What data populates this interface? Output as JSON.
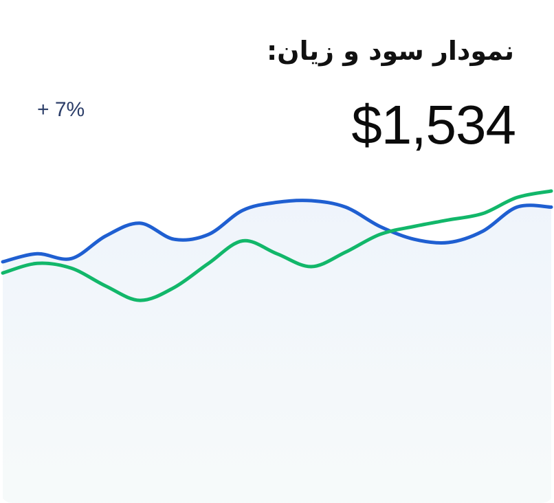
{
  "card": {
    "title": "نمودار سود و زیان:",
    "amount": "$1,534",
    "change": "+ 7%"
  },
  "chart_data": {
    "type": "line",
    "x": [
      0,
      1,
      2,
      3,
      4,
      5,
      6,
      7,
      8,
      9,
      10,
      11,
      12,
      13,
      14,
      15,
      16
    ],
    "series": [
      {
        "color": "#1f5fd1",
        "values": [
          56,
          61,
          58,
          72,
          80,
          70,
          73,
          88,
          93,
          94,
          90,
          78,
          70,
          68,
          75,
          90,
          90
        ]
      },
      {
        "color": "#12b76a",
        "values": [
          49,
          55,
          52,
          41,
          32,
          40,
          55,
          69,
          61,
          53,
          62,
          73,
          78,
          82,
          86,
          96,
          100
        ]
      }
    ],
    "fill_color": "#eef6f8",
    "grid": false,
    "legend": "none"
  }
}
